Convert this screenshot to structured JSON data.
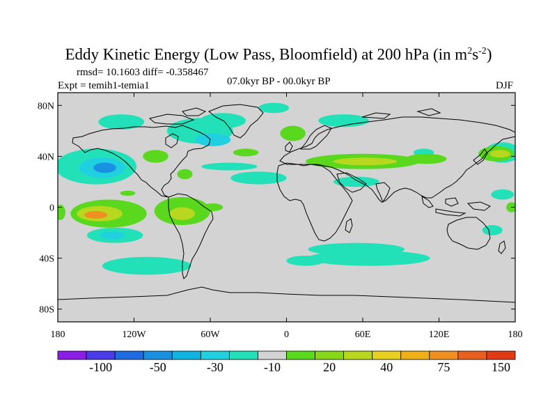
{
  "title": {
    "main": "Eddy Kinetic Energy (Low Pass, Bloomfield) at 200 hPa (in m",
    "sup1": "2",
    "mid": "s",
    "sup2": "-2",
    "end": ")"
  },
  "stats": "rmsd= 10.1603 diff= -0.358467",
  "expt": "Expt = temih1-temia1",
  "period": "07.0kyr BP - 00.0kyr BP",
  "season": "DJF",
  "map_data": {
    "type": "contour-map",
    "projection": "cylindrical-equidistant",
    "lon_range": [
      -180,
      180
    ],
    "lat_range": [
      -90,
      90
    ],
    "lat_ticks": [
      {
        "lat": 80,
        "label": "80N"
      },
      {
        "lat": 40,
        "label": "40N"
      },
      {
        "lat": 0,
        "label": "0"
      },
      {
        "lat": -40,
        "label": "40S"
      },
      {
        "lat": -80,
        "label": "80S"
      }
    ],
    "lon_ticks": [
      {
        "lon": -180,
        "label": "180"
      },
      {
        "lon": -120,
        "label": "120W"
      },
      {
        "lon": -60,
        "label": "60W"
      },
      {
        "lon": 0,
        "label": "0"
      },
      {
        "lon": 60,
        "label": "60E"
      },
      {
        "lon": 120,
        "label": "120E"
      },
      {
        "lon": 180,
        "label": "180"
      }
    ],
    "background_color": "#d3d3d3"
  },
  "colorbar": {
    "colors": [
      "#8a1ee6",
      "#4a3ce8",
      "#1f6ae0",
      "#1a90e0",
      "#10b4e0",
      "#20d0e0",
      "#22e0b8",
      "#d3d3d3",
      "#5ad81e",
      "#88d81a",
      "#b8d820",
      "#e6d020",
      "#f0b018",
      "#f09020",
      "#e86020",
      "#e03a16"
    ],
    "labels": [
      {
        "text": "-100",
        "boundary": 2
      },
      {
        "text": "-50",
        "boundary": 4
      },
      {
        "text": "-30",
        "boundary": 6
      },
      {
        "text": "-10",
        "boundary": 8
      },
      {
        "text": "20",
        "boundary": 10
      },
      {
        "text": "40",
        "boundary": 12
      },
      {
        "text": "75",
        "boundary": 14
      },
      {
        "text": "150",
        "boundary": 16
      }
    ]
  },
  "anomaly_regions": [
    {
      "level": "neg-weak",
      "lon": -150,
      "lat": 32,
      "rlon": 32,
      "rlat": 14
    },
    {
      "level": "neg-mid",
      "lon": -145,
      "lat": 31,
      "rlon": 18,
      "rlat": 8
    },
    {
      "level": "neg-strong",
      "lon": -143,
      "lat": 31,
      "rlon": 9,
      "rlat": 4
    },
    {
      "level": "neg-weak",
      "lon": -68,
      "lat": 60,
      "rlon": 26,
      "rlat": 10
    },
    {
      "level": "neg-weak",
      "lon": -50,
      "lat": 68,
      "rlon": 18,
      "rlat": 6
    },
    {
      "level": "neg-mid",
      "lon": -58,
      "lat": 53,
      "rlon": 14,
      "rlat": 5
    },
    {
      "level": "neg-weak",
      "lon": -130,
      "lat": 67,
      "rlon": 18,
      "rlat": 6
    },
    {
      "level": "neg-weak",
      "lon": -10,
      "lat": 78,
      "rlon": 12,
      "rlat": 4
    },
    {
      "level": "neg-weak",
      "lon": 45,
      "lat": 68,
      "rlon": 20,
      "rlat": 5
    },
    {
      "level": "neg-weak",
      "lon": -22,
      "lat": 23,
      "rlon": 22,
      "rlat": 5
    },
    {
      "level": "neg-weak",
      "lon": -45,
      "lat": 32,
      "rlon": 22,
      "rlat": 3
    },
    {
      "level": "neg-weak",
      "lon": 55,
      "lat": 20,
      "rlon": 18,
      "rlat": 4
    },
    {
      "level": "neg-weak",
      "lon": -135,
      "lat": -22,
      "rlon": 22,
      "rlat": 6
    },
    {
      "level": "neg-mid",
      "lon": -137,
      "lat": -22,
      "rlon": 10,
      "rlat": 3
    },
    {
      "level": "neg-weak",
      "lon": -110,
      "lat": -46,
      "rlon": 35,
      "rlat": 7
    },
    {
      "level": "neg-weak",
      "lon": 55,
      "lat": -33,
      "rlon": 38,
      "rlat": 5
    },
    {
      "level": "neg-weak",
      "lon": 65,
      "lat": -40,
      "rlon": 48,
      "rlat": 6
    },
    {
      "level": "neg-weak",
      "lon": 15,
      "lat": -42,
      "rlon": 15,
      "rlat": 4
    },
    {
      "level": "neg-weak",
      "lon": 162,
      "lat": -18,
      "rlon": 8,
      "rlat": 4
    },
    {
      "level": "neg-weak",
      "lon": 108,
      "lat": 43,
      "rlon": 8,
      "rlat": 3
    },
    {
      "level": "neg-weak",
      "lon": 170,
      "lat": 10,
      "rlon": 9,
      "rlat": 4
    },
    {
      "level": "neg-weak",
      "lon": 170,
      "lat": 43,
      "rlon": 14,
      "rlat": 8
    },
    {
      "level": "pos-weak",
      "lon": -140,
      "lat": -5,
      "rlon": 30,
      "rlat": 11
    },
    {
      "level": "pos-mid",
      "lon": -147,
      "lat": -5,
      "rlon": 18,
      "rlat": 6
    },
    {
      "level": "pos-strong",
      "lon": -150,
      "lat": -6,
      "rlon": 9,
      "rlat": 3
    },
    {
      "level": "pos-weak",
      "lon": -82,
      "lat": -3,
      "rlon": 22,
      "rlat": 11
    },
    {
      "level": "pos-mid",
      "lon": -82,
      "lat": -5,
      "rlon": 10,
      "rlat": 5
    },
    {
      "level": "pos-weak",
      "lon": -58,
      "lat": 0,
      "rlon": 8,
      "rlat": 3
    },
    {
      "level": "pos-weak",
      "lon": -125,
      "lat": 11,
      "rlon": 6,
      "rlat": 2
    },
    {
      "level": "pos-weak",
      "lon": -103,
      "lat": 40,
      "rlon": 10,
      "rlat": 5
    },
    {
      "level": "pos-weak",
      "lon": -80,
      "lat": 26,
      "rlon": 6,
      "rlat": 4
    },
    {
      "level": "pos-weak",
      "lon": -32,
      "lat": 43,
      "rlon": 10,
      "rlat": 3
    },
    {
      "level": "pos-weak",
      "lon": 5,
      "lat": 58,
      "rlon": 10,
      "rlat": 6
    },
    {
      "level": "pos-weak",
      "lon": 60,
      "lat": 36,
      "rlon": 45,
      "rlat": 6
    },
    {
      "level": "pos-mid",
      "lon": 62,
      "lat": 36,
      "rlon": 25,
      "rlat": 3
    },
    {
      "level": "pos-weak",
      "lon": 110,
      "lat": 38,
      "rlon": 16,
      "rlat": 4
    },
    {
      "level": "pos-weak",
      "lon": 165,
      "lat": 42,
      "rlon": 14,
      "rlat": 6
    },
    {
      "level": "pos-mid",
      "lon": 168,
      "lat": 42,
      "rlon": 8,
      "rlat": 3
    },
    {
      "level": "pos-weak",
      "lon": 177,
      "lat": 0,
      "rlon": 4,
      "rlat": 4
    },
    {
      "level": "pos-weak",
      "lon": -178,
      "lat": -4,
      "rlon": 4,
      "rlat": 6
    }
  ]
}
